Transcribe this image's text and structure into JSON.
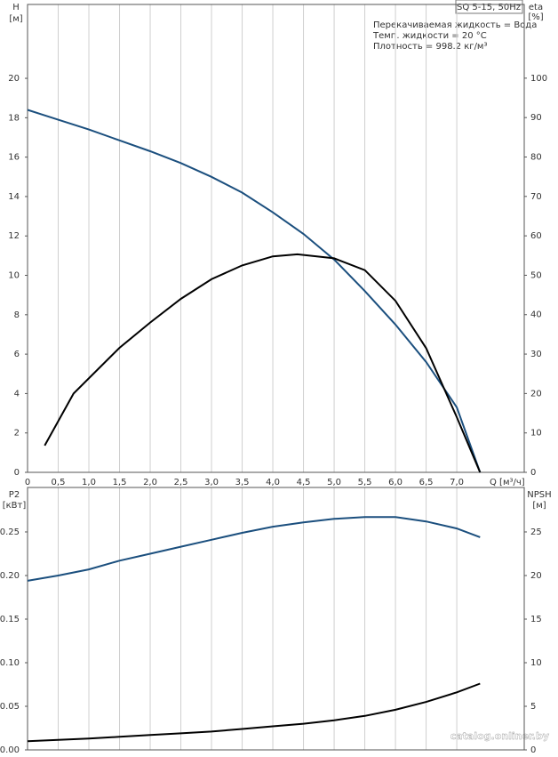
{
  "chart_data": [
    {
      "type": "line",
      "ylabel": "H",
      "yunit": "[м]",
      "y2label": "eta",
      "y2unit": "[%]",
      "model": "SQ 5-15, 50Hz",
      "annotations": [
        "Перекачиваемая жидкость = Вода",
        "Темп. жидкости = 20 °C",
        "Плотность = 998.2 кг/м³"
      ],
      "xlabel": "Q [м³/ч]",
      "xlim": [
        0,
        8.1
      ],
      "xticks": [
        0,
        {
          "value": 0.5,
          "label": "0,5"
        },
        {
          "value": 1,
          "label": "1,0"
        },
        {
          "value": 1.5,
          "label": "1,5"
        },
        {
          "value": 2,
          "label": "2,0"
        },
        {
          "value": 2.5,
          "label": "2,5"
        },
        {
          "value": 3,
          "label": "3,0"
        },
        {
          "value": 3.5,
          "label": "3,5"
        },
        {
          "value": 4,
          "label": "4,0"
        },
        {
          "value": 4.5,
          "label": "4,5"
        },
        {
          "value": 5,
          "label": "5,0"
        },
        {
          "value": 5.5,
          "label": "5,5"
        },
        {
          "value": 6,
          "label": "6,0"
        },
        {
          "value": 6.5,
          "label": "6,5"
        },
        {
          "value": 7,
          "label": "7,0"
        }
      ],
      "ylim": [
        0,
        23.75
      ],
      "yticks": [
        0,
        2,
        4,
        6,
        8,
        10,
        12,
        14,
        16,
        18,
        20
      ],
      "y2lim": [
        0,
        118.7
      ],
      "y2ticks": [
        0,
        10,
        20,
        30,
        40,
        50,
        60,
        70,
        80,
        90,
        100
      ],
      "series": [
        {
          "color": "#1b4f7e",
          "axis": "y",
          "x": [
            0,
            0.5,
            1,
            1.5,
            2,
            2.5,
            3,
            3.5,
            4,
            4.5,
            5,
            5.5,
            6,
            6.5,
            7,
            7.38
          ],
          "values": [
            18.4,
            17.9,
            17.4,
            16.85,
            16.3,
            15.7,
            15.0,
            14.2,
            13.2,
            12.1,
            10.8,
            9.2,
            7.5,
            5.6,
            3.3,
            0
          ]
        },
        {
          "color": "#000000",
          "axis": "y2",
          "x": [
            0.28,
            0.75,
            1.5,
            2,
            2.5,
            3,
            3.5,
            4,
            4.4,
            5,
            5.5,
            6,
            6.5,
            7,
            7.38
          ],
          "values": [
            6.8,
            20,
            31.6,
            38,
            44,
            49,
            52.5,
            54.8,
            55.3,
            54.3,
            51.3,
            43.5,
            31.5,
            14,
            0
          ]
        }
      ]
    },
    {
      "type": "line",
      "ylabel": "P2",
      "yunit": "[кВт]",
      "y2label": "NPSH",
      "y2unit": "[м]",
      "ylim": [
        0,
        0.301
      ],
      "yticks": [
        {
          "value": 0,
          "label": "0.00"
        },
        {
          "value": 0.05,
          "label": "0.05"
        },
        {
          "value": 0.1,
          "label": "0.10"
        },
        {
          "value": 0.15,
          "label": "0.15"
        },
        {
          "value": 0.2,
          "label": "0.20"
        },
        {
          "value": 0.25,
          "label": "0.25"
        }
      ],
      "y2lim": [
        0,
        30.1
      ],
      "y2ticks": [
        0,
        5,
        10,
        15,
        20,
        25
      ],
      "series": [
        {
          "color": "#1b4f7e",
          "axis": "y",
          "x": [
            0,
            0.5,
            1,
            1.5,
            2,
            2.5,
            3,
            3.5,
            4,
            4.5,
            5,
            5.5,
            6,
            6.5,
            7,
            7.38
          ],
          "values": [
            0.194,
            0.2,
            0.207,
            0.217,
            0.225,
            0.233,
            0.241,
            0.249,
            0.256,
            0.261,
            0.265,
            0.267,
            0.267,
            0.262,
            0.254,
            0.244
          ]
        },
        {
          "color": "#000000",
          "axis": "y2",
          "x": [
            0,
            0.5,
            1,
            1.5,
            2,
            2.5,
            3,
            3.5,
            4,
            4.5,
            5,
            5.5,
            6,
            6.5,
            7,
            7.38
          ],
          "values": [
            1.0,
            1.15,
            1.3,
            1.5,
            1.7,
            1.9,
            2.1,
            2.4,
            2.7,
            3.0,
            3.4,
            3.9,
            4.6,
            5.5,
            6.6,
            7.6
          ]
        }
      ]
    }
  ],
  "watermark": "catalog.onliner.by"
}
